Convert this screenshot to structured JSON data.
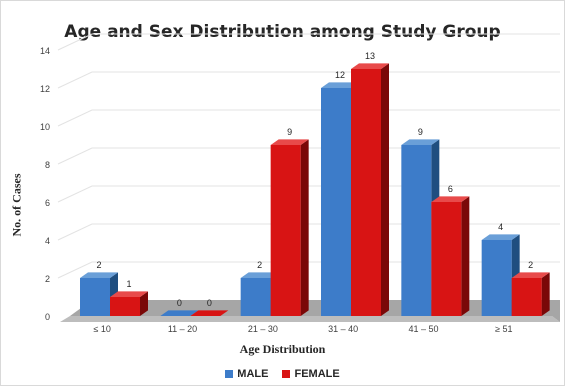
{
  "chart_data": {
    "type": "bar",
    "title": "Age and Sex Distribution among Study Group",
    "xlabel": "Age Distribution",
    "ylabel": "No. of Cases",
    "categories": [
      "≤ 10",
      "11 – 20",
      "21 – 30",
      "31 – 40",
      "41 – 50",
      "≥ 51"
    ],
    "series": [
      {
        "name": "MALE",
        "values": [
          2,
          0,
          2,
          12,
          9,
          4
        ],
        "color": "#3d7cc9",
        "dark": "#1f4e80",
        "top": "#6a9fd8"
      },
      {
        "name": "FEMALE",
        "values": [
          1,
          0,
          9,
          13,
          6,
          2
        ],
        "color": "#d81414",
        "dark": "#7a0808",
        "top": "#e84a4a"
      }
    ],
    "ylim": [
      0,
      14
    ],
    "yticks": [
      0,
      2,
      4,
      6,
      8,
      10,
      12,
      14
    ],
    "grid": true,
    "legend_position": "bottom",
    "data_labels": true
  }
}
